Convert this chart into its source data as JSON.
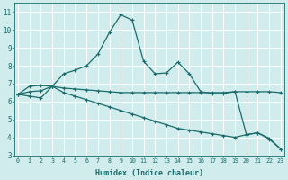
{
  "line1_x": [
    0,
    1,
    2,
    3,
    4,
    5,
    6,
    7,
    8,
    9,
    10,
    11,
    12,
    13,
    14,
    15,
    16,
    17,
    18,
    19,
    20,
    21,
    22,
    23
  ],
  "line1_y": [
    6.4,
    6.85,
    6.9,
    6.85,
    7.55,
    7.75,
    8.0,
    8.65,
    9.85,
    10.85,
    10.55,
    8.25,
    7.55,
    7.6,
    8.2,
    7.55,
    6.55,
    6.45,
    6.45,
    6.55,
    4.15,
    4.25,
    3.95,
    3.35
  ],
  "line2_x": [
    0,
    1,
    2,
    3,
    4,
    5,
    6,
    7,
    8,
    9,
    10,
    11,
    12,
    13,
    14,
    15,
    16,
    17,
    18,
    19,
    20,
    21,
    22,
    23
  ],
  "line2_y": [
    6.4,
    6.55,
    6.6,
    6.85,
    6.75,
    6.7,
    6.65,
    6.6,
    6.55,
    6.5,
    6.5,
    6.5,
    6.5,
    6.5,
    6.5,
    6.5,
    6.5,
    6.5,
    6.5,
    6.55,
    6.55,
    6.55,
    6.55,
    6.5
  ],
  "line3_x": [
    0,
    1,
    2,
    3,
    4,
    5,
    6,
    7,
    8,
    9,
    10,
    11,
    12,
    13,
    14,
    15,
    16,
    17,
    18,
    19,
    20,
    21,
    22,
    23
  ],
  "line3_y": [
    6.4,
    6.3,
    6.2,
    6.85,
    6.5,
    6.3,
    6.1,
    5.9,
    5.7,
    5.5,
    5.3,
    5.1,
    4.9,
    4.7,
    4.5,
    4.4,
    4.3,
    4.2,
    4.1,
    4.0,
    4.15,
    4.25,
    3.9,
    3.35
  ],
  "bg_color": "#d0ecec",
  "grid_color": "#b8d8d8",
  "line_color": "#1a6b6b",
  "xlabel": "Humidex (Indice chaleur)",
  "xlim": [
    0,
    23
  ],
  "ylim": [
    3,
    11.5
  ],
  "yticks": [
    3,
    4,
    5,
    6,
    7,
    8,
    9,
    10,
    11
  ],
  "xticks": [
    0,
    1,
    2,
    3,
    4,
    5,
    6,
    7,
    8,
    9,
    10,
    11,
    12,
    13,
    14,
    15,
    16,
    17,
    18,
    19,
    20,
    21,
    22,
    23
  ]
}
